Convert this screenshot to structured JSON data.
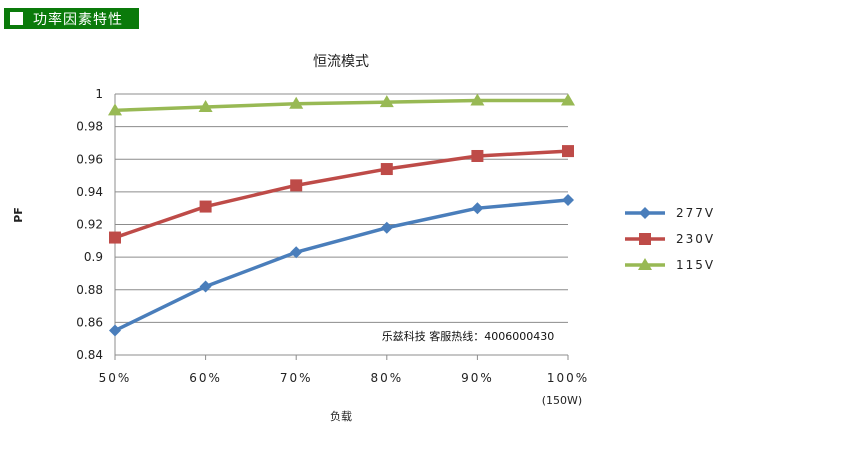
{
  "header": {
    "title": "功率因素特性"
  },
  "chart_data": {
    "type": "line",
    "title": "恒流模式",
    "xlabel": "负载",
    "ylabel": "PF",
    "categories": [
      "50%",
      "60%",
      "70%",
      "80%",
      "90%",
      "100%"
    ],
    "x_note": "(150W)",
    "ylim": [
      0.84,
      1.0
    ],
    "yticks": [
      "0.84",
      "0.86",
      "0.88",
      "0.9",
      "0.92",
      "0.94",
      "0.96",
      "0.98",
      "1"
    ],
    "grid": true,
    "legend_position": "right",
    "series": [
      {
        "name": "277V",
        "values": [
          0.855,
          0.882,
          0.903,
          0.918,
          0.93,
          0.935
        ],
        "color": "#4a7ebb",
        "marker": "diamond"
      },
      {
        "name": "230V",
        "values": [
          0.912,
          0.931,
          0.944,
          0.954,
          0.962,
          0.965
        ],
        "color": "#be4b48",
        "marker": "square"
      },
      {
        "name": "115V",
        "values": [
          0.99,
          0.992,
          0.994,
          0.995,
          0.996,
          0.996
        ],
        "color": "#98b954",
        "marker": "triangle"
      }
    ],
    "annotation": "乐兹科技 客服热线：4006000430"
  }
}
